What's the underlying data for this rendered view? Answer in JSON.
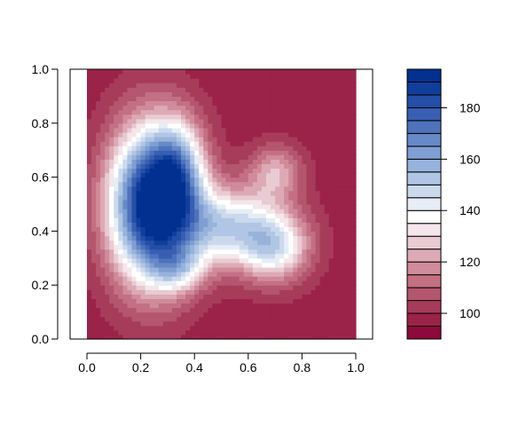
{
  "chart_data": {
    "type": "heatmap",
    "title": "",
    "xlabel": "",
    "ylabel": "",
    "xlim": [
      0.0,
      1.0
    ],
    "ylim": [
      0.0,
      1.0
    ],
    "x_ticks": [
      "0.0",
      "0.2",
      "0.4",
      "0.6",
      "0.8",
      "1.0"
    ],
    "y_ticks": [
      "0.0",
      "0.2",
      "0.4",
      "0.6",
      "0.8",
      "1.0"
    ],
    "colorbar": {
      "levels": [
        90,
        95,
        100,
        105,
        110,
        115,
        120,
        125,
        130,
        135,
        140,
        145,
        150,
        155,
        160,
        165,
        170,
        175,
        180,
        185,
        190,
        195
      ],
      "ticks": [
        "100",
        "120",
        "140",
        "160",
        "180"
      ],
      "tick_values": [
        100,
        120,
        140,
        160,
        180
      ],
      "colors": [
        "#8c0a3c",
        "#9b2349",
        "#a73c5a",
        "#b4566d",
        "#c27082",
        "#d08b9a",
        "#dcaab5",
        "#e9cbd2",
        "#f4e6ea",
        "#ffffff",
        "#e6edf6",
        "#cbd9ed",
        "#b1c6e4",
        "#98b3db",
        "#7f9fd2",
        "#6689c7",
        "#4e73bc",
        "#385fb2",
        "#254ea7",
        "#103e9c",
        "#023090"
      ]
    },
    "field": {
      "baseline": 97,
      "peaks": [
        {
          "x": 0.24,
          "y": 0.5,
          "height": 100,
          "sx": 0.11,
          "sy": 0.2
        },
        {
          "x": 0.34,
          "y": 0.62,
          "height": 38,
          "sx": 0.07,
          "sy": 0.13
        },
        {
          "x": 0.52,
          "y": 0.42,
          "height": 48,
          "sx": 0.14,
          "sy": 0.1
        },
        {
          "x": 0.7,
          "y": 0.34,
          "height": 40,
          "sx": 0.09,
          "sy": 0.09
        },
        {
          "x": 0.7,
          "y": 0.62,
          "height": 26,
          "sx": 0.07,
          "sy": 0.07
        },
        {
          "x": 0.34,
          "y": 0.26,
          "height": 25,
          "sx": 0.07,
          "sy": 0.06
        }
      ]
    }
  }
}
